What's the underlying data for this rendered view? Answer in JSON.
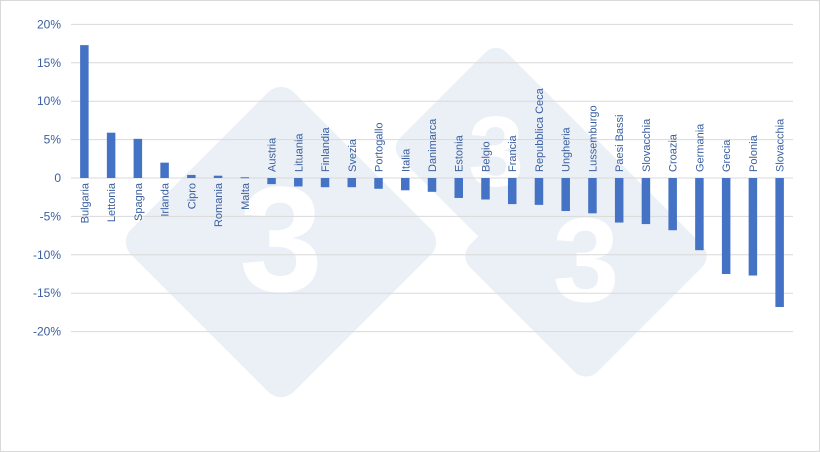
{
  "chart_data": {
    "type": "bar",
    "title": "",
    "xlabel": "",
    "ylabel": "",
    "ylim": [
      -20,
      20
    ],
    "yticks": [
      20,
      15,
      10,
      5,
      0,
      -5,
      -10,
      -15,
      -20
    ],
    "ytick_labels": [
      "20%",
      "15%",
      "10%",
      "5%",
      "0",
      "-5%",
      "-10%",
      "-15%",
      "-20%"
    ],
    "grid": true,
    "legend": "none",
    "bar_color": "#4472c4",
    "categories": [
      "Bulgaria",
      "Lettonia",
      "Spagna",
      "Irlanda",
      "Cipro",
      "Romania",
      "Malta",
      "Austria",
      "Lituania",
      "Finlandia",
      "Svezia",
      "Portogallo",
      "Italia",
      "Danimarca",
      "Estonia",
      "Belgio",
      "Francia",
      "Repubblica Ceca",
      "Ungheria",
      "Lussemburgo",
      "Paesi Bassi",
      "Slovacchia",
      "Croazia",
      "Germania",
      "Grecia",
      "Polonia",
      "Slovacchia"
    ],
    "values": [
      17.3,
      5.9,
      5.1,
      2.0,
      0.4,
      0.3,
      0.1,
      -0.8,
      -1.1,
      -1.2,
      -1.2,
      -1.4,
      -1.6,
      -1.8,
      -2.6,
      -2.8,
      -3.4,
      -3.5,
      -4.3,
      -4.6,
      -5.8,
      -6.0,
      -6.8,
      -9.4,
      -12.5,
      -12.7,
      -16.8
    ]
  }
}
